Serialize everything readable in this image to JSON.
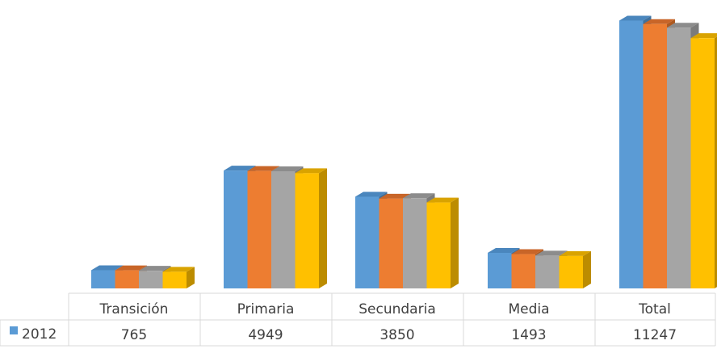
{
  "chart_data": {
    "type": "bar",
    "style": "3d-clustered-column-with-data-table",
    "categories": [
      "Transición",
      "Primaria",
      "Secundaria",
      "Media",
      "Total"
    ],
    "series": [
      {
        "name": "2012",
        "values": [
          765,
          4949,
          3850,
          1493,
          11247
        ]
      },
      {
        "name": null,
        "values": [
          760,
          4930,
          3770,
          1440,
          11100
        ]
      },
      {
        "name": null,
        "values": [
          740,
          4920,
          3790,
          1380,
          10950
        ]
      },
      {
        "name": null,
        "values": [
          700,
          4840,
          3610,
          1360,
          10510
        ]
      }
    ],
    "colors": [
      "#5b9bd5",
      "#ed7d31",
      "#a5a5a5",
      "#ffc000"
    ],
    "side_colors": [
      "#41719c",
      "#ae5a21",
      "#7b7b7b",
      "#bc8c00"
    ],
    "top_colors": [
      "#4a86bd",
      "#c86528",
      "#8c8c8c",
      "#d9a300"
    ],
    "data_table": {
      "header": [
        "Transición",
        "Primaria",
        "Secundaria",
        "Media",
        "Total"
      ],
      "row_label": "2012",
      "row_values": [
        "765",
        "4949",
        "3850",
        "1493",
        "11247"
      ]
    },
    "ylim": [
      0,
      11500
    ],
    "grid": false,
    "legend": "data-table"
  }
}
